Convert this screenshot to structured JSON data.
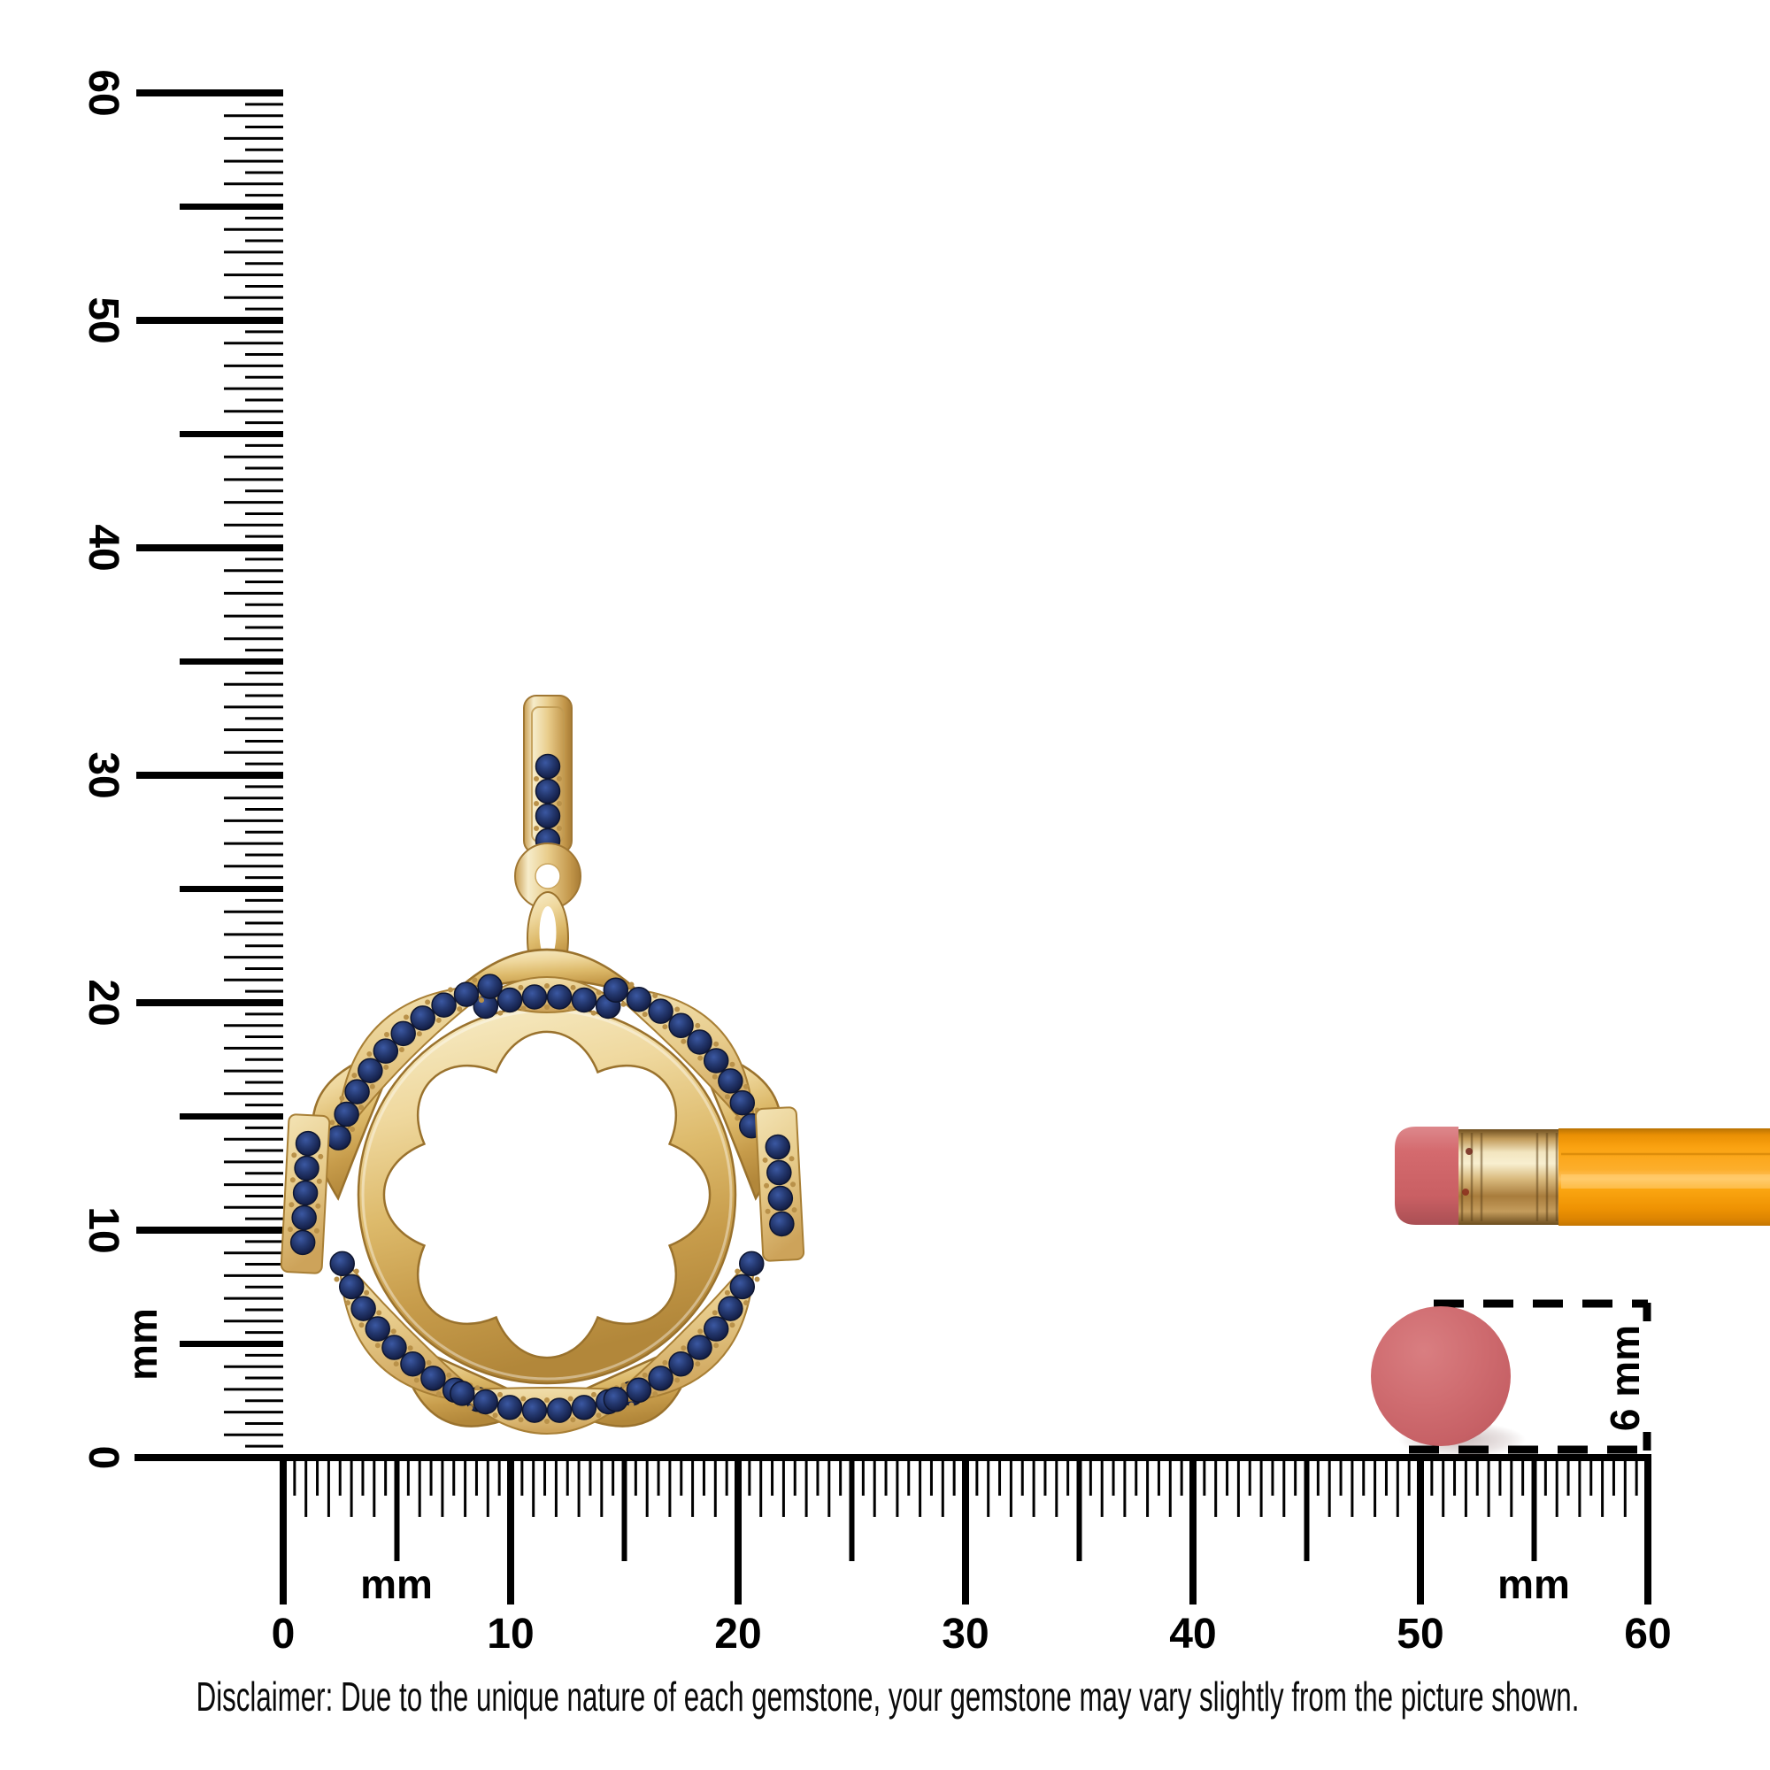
{
  "rulers": {
    "vertical": {
      "unit": "mm",
      "tick_labels": [
        "0",
        "10",
        "20",
        "30",
        "40",
        "50",
        "60"
      ],
      "range_mm": [
        0,
        60
      ]
    },
    "horizontal": {
      "unit_left": "mm",
      "unit_right": "mm",
      "tick_labels": [
        "0",
        "10",
        "20",
        "30",
        "40",
        "50",
        "60"
      ],
      "range_mm": [
        0,
        60
      ]
    }
  },
  "size_marker": {
    "label": "6 mm",
    "diameter_mm": 6,
    "circle_color": "#cf686c"
  },
  "pendant": {
    "description": "Yellow gold scalloped open-circle pendant pave-set with round blue sapphires, sapphire-set bail",
    "metal_color": "#e3c17c",
    "gem_color": "#22356e",
    "bail_gem_count": 4
  },
  "pencil": {
    "body_color": "#f89d05",
    "ferrule_color": "#d9ba7e",
    "eraser_color": "#cf686c"
  },
  "disclaimer": "Disclaimer: Due to the unique nature of each gemstone, your gemstone may vary slightly from the picture shown."
}
